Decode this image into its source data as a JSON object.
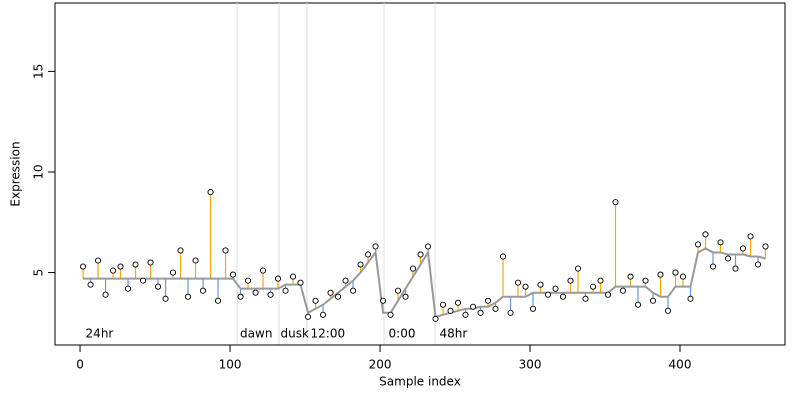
{
  "chart_data": {
    "type": "scatter",
    "xlabel": "Sample index",
    "ylabel": "Expression",
    "xlim": [
      -16.7,
      470
    ],
    "ylim": [
      1.4,
      18.4
    ],
    "xticks": [
      0,
      100,
      200,
      300,
      400
    ],
    "yticks": [
      5,
      10,
      15
    ],
    "vlines": [
      104.7,
      132.7,
      151.3,
      202.7,
      236.7
    ],
    "annotations": [
      {
        "x": 3,
        "label": "24hr"
      },
      {
        "x": 106,
        "label": "dawn"
      },
      {
        "x": 133,
        "label": "dusk"
      },
      {
        "x": 153,
        "label": "12:00"
      },
      {
        "x": 205,
        "label": "0:00"
      },
      {
        "x": 239,
        "label": "48hr"
      }
    ],
    "above_color": "#ffa500",
    "below_color": "#6495ed",
    "fit_color": "#999999",
    "vline_color": "#dddddd",
    "annotation_color": "#aaaaaa",
    "x": [
      2,
      7,
      12,
      17,
      22,
      27,
      32,
      37,
      42,
      47,
      52,
      57,
      62,
      67,
      72,
      77,
      82,
      87,
      92,
      97,
      102,
      107,
      112,
      117,
      122,
      127,
      132,
      137,
      142,
      147,
      152,
      157,
      162,
      167,
      172,
      177,
      182,
      187,
      192,
      197,
      202,
      207,
      212,
      217,
      222,
      227,
      232,
      237,
      242,
      247,
      252,
      257,
      262,
      267,
      272,
      277,
      282,
      287,
      292,
      297,
      302,
      307,
      312,
      317,
      322,
      327,
      332,
      337,
      342,
      347,
      352,
      357,
      362,
      367,
      372,
      377,
      382,
      387,
      392,
      397,
      402,
      407,
      412,
      417,
      422,
      427,
      432,
      437,
      442,
      447,
      452,
      457
    ],
    "fit": [
      4.7,
      4.7,
      4.7,
      4.7,
      4.7,
      4.7,
      4.7,
      4.7,
      4.7,
      4.7,
      4.7,
      4.7,
      4.7,
      4.7,
      4.7,
      4.7,
      4.7,
      4.7,
      4.7,
      4.7,
      4.7,
      4.2,
      4.2,
      4.2,
      4.2,
      4.2,
      4.2,
      4.4,
      4.4,
      4.4,
      3.0,
      3.2,
      3.4,
      3.7,
      4.0,
      4.3,
      4.6,
      5.0,
      5.5,
      6.0,
      3.0,
      3.0,
      3.6,
      4.2,
      4.8,
      5.4,
      6.0,
      2.8,
      2.9,
      3.0,
      3.1,
      3.2,
      3.2,
      3.3,
      3.3,
      3.5,
      3.8,
      3.8,
      3.8,
      3.8,
      4.0,
      4.0,
      4.0,
      4.0,
      4.0,
      4.0,
      4.0,
      4.0,
      4.0,
      4.0,
      4.0,
      4.3,
      4.3,
      4.3,
      4.3,
      4.3,
      4.0,
      3.8,
      3.8,
      4.3,
      4.3,
      4.3,
      6.0,
      6.2,
      6.0,
      6.0,
      5.9,
      5.9,
      5.9,
      5.8,
      5.8,
      5.7
    ],
    "values": [
      5.3,
      4.4,
      5.6,
      3.9,
      5.1,
      5.3,
      4.2,
      5.4,
      4.6,
      5.5,
      4.3,
      3.7,
      5.0,
      6.1,
      3.8,
      5.6,
      4.1,
      9.0,
      3.6,
      6.1,
      4.9,
      3.8,
      4.6,
      4.0,
      5.1,
      3.9,
      4.7,
      4.1,
      4.8,
      4.5,
      2.8,
      3.6,
      2.9,
      4.0,
      3.8,
      4.6,
      4.1,
      5.4,
      5.9,
      6.3,
      3.6,
      2.9,
      4.1,
      3.8,
      5.2,
      5.9,
      6.3,
      2.7,
      3.4,
      3.1,
      3.5,
      2.9,
      3.3,
      3.0,
      3.6,
      3.2,
      5.8,
      3.0,
      4.5,
      4.3,
      3.2,
      4.4,
      3.9,
      4.2,
      3.8,
      4.6,
      5.2,
      3.7,
      4.3,
      4.6,
      3.9,
      8.5,
      4.1,
      4.8,
      3.4,
      4.6,
      3.6,
      4.9,
      3.1,
      5.0,
      4.8,
      3.7,
      6.4,
      6.9,
      5.3,
      6.5,
      5.7,
      5.2,
      6.2,
      6.8,
      5.4,
      6.3
    ]
  }
}
